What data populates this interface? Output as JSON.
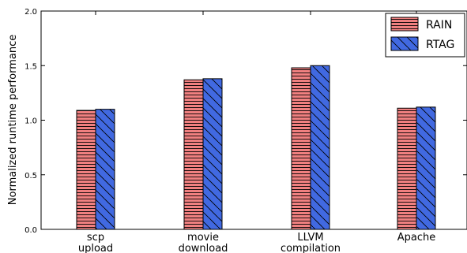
{
  "chart_data": {
    "type": "bar",
    "categories": [
      [
        "scp",
        "upload"
      ],
      [
        "movie",
        "download"
      ],
      [
        "LLVM",
        "compilation"
      ],
      [
        "Apache"
      ]
    ],
    "series": [
      {
        "name": "RAIN",
        "values": [
          1.09,
          1.37,
          1.48,
          1.11
        ],
        "color": "#f08080",
        "hatch": "horizontal"
      },
      {
        "name": "RTAG",
        "values": [
          1.1,
          1.38,
          1.5,
          1.12
        ],
        "color": "#4169e1",
        "hatch": "diagonal"
      }
    ],
    "ylabel": "Normalized runtime performance",
    "xlabel": "",
    "ylim": [
      0.0,
      2.0
    ],
    "yticks": [
      "0.0",
      "0.5",
      "1.0",
      "1.5",
      "2.0"
    ],
    "legend_position": "top-right",
    "grid": false
  }
}
